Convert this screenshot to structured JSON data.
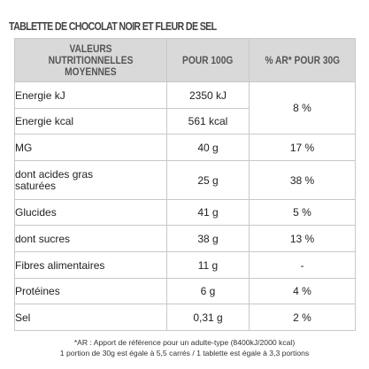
{
  "title": "TABLETTE DE CHOCOLAT NOIR ET FLEUR DE SEL",
  "headers": {
    "nutrient_line1": "VALEURS NUTRITIONNELLES",
    "nutrient_line2": "MOYENNES",
    "per100": "POUR 100G",
    "ar": "% AR* POUR 30G"
  },
  "rows": [
    {
      "label": "Energie kJ",
      "value": "2350 kJ"
    },
    {
      "label": "Energie kcal",
      "value": "561 kcal"
    },
    {
      "label": "MG",
      "value": "40 g",
      "pct": "17 %"
    },
    {
      "label": "dont acides gras saturées",
      "value": "25 g",
      "pct": "38 %"
    },
    {
      "label": "Glucides",
      "value": "41 g",
      "pct": "5 %"
    },
    {
      "label": "dont sucres",
      "value": "38 g",
      "pct": "13 %"
    },
    {
      "label": "Fibres alimentaires",
      "value": "11 g",
      "pct": "-"
    },
    {
      "label": "Protéines",
      "value": "6 g",
      "pct": "4 %"
    },
    {
      "label": "Sel",
      "value": "0,31 g",
      "pct": "2 %"
    }
  ],
  "energy_pct": "8 %",
  "footnote": {
    "line1": "*AR : Apport de référence pour un adulte-type (8400kJ/2000 kcal)",
    "line2": "1 portion de 30g est égale à 5,5 carrés / 1 tablette est égale à 3,3 portions"
  }
}
